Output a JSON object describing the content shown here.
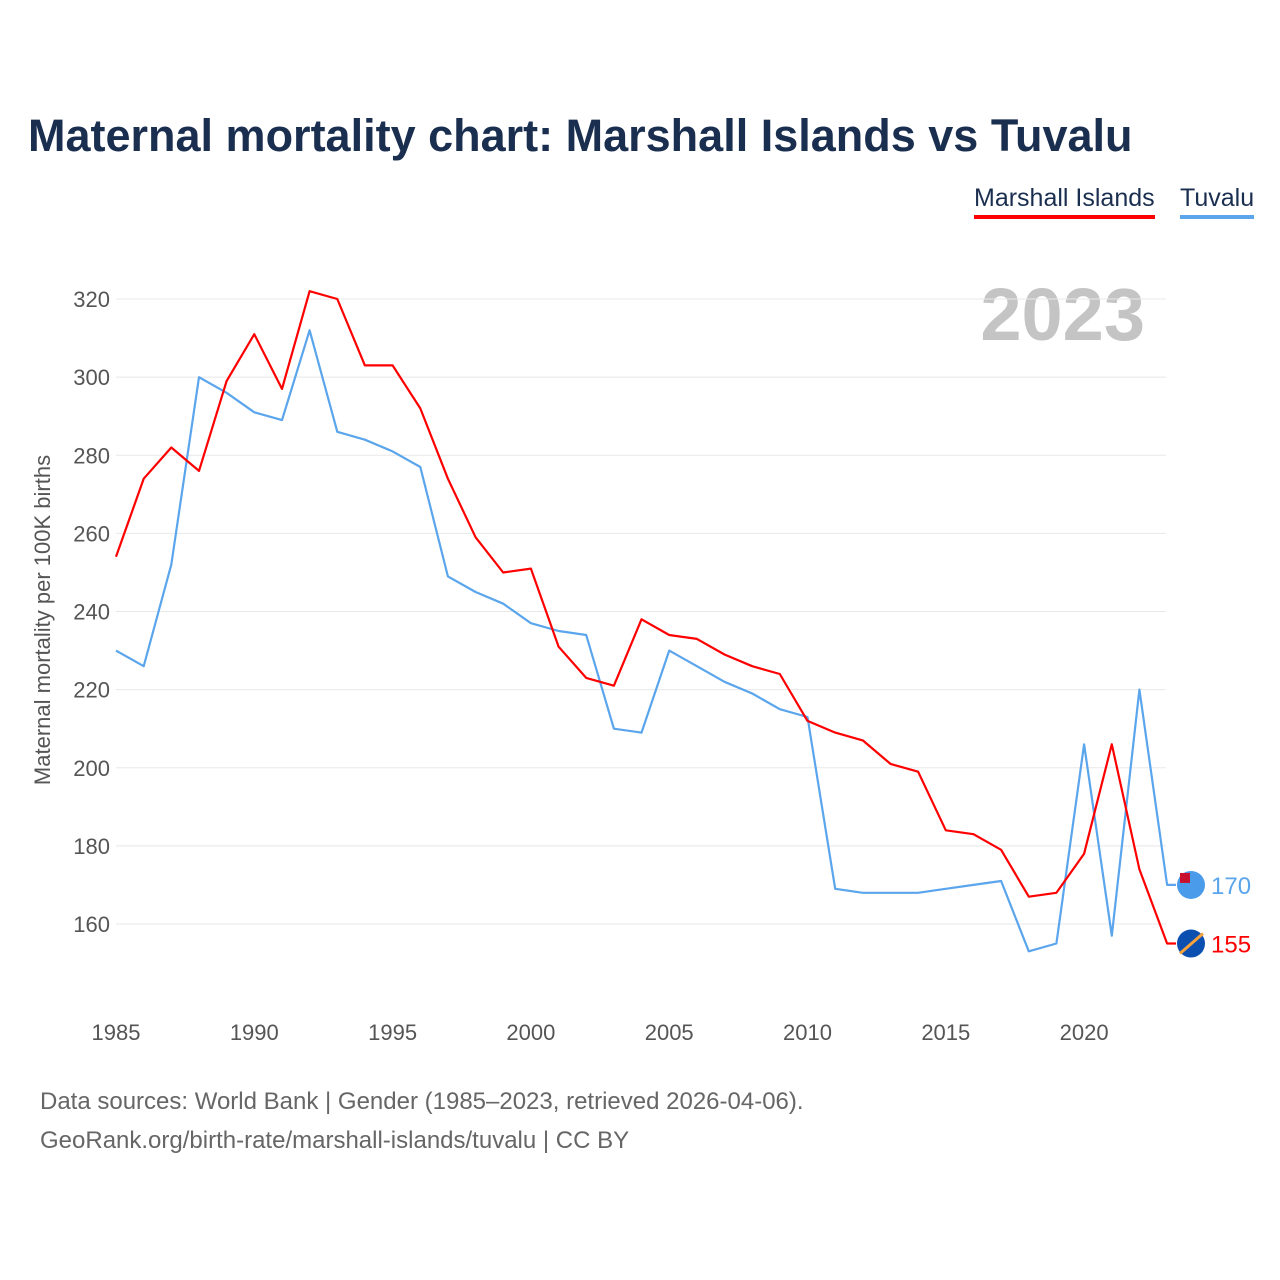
{
  "chart_data": {
    "type": "line",
    "title": "Maternal mortality chart: Marshall Islands vs Tuvalu",
    "xlabel": "",
    "ylabel": "Maternal mortality per 100K births",
    "year_label": "2023",
    "xlim": [
      1985,
      2023
    ],
    "ylim": [
      140,
      330
    ],
    "grid": true,
    "legend_position": "top-right",
    "x_ticks": [
      1985,
      1990,
      1995,
      2000,
      2005,
      2010,
      2015,
      2020
    ],
    "y_ticks": [
      160,
      180,
      200,
      220,
      240,
      260,
      280,
      300,
      320
    ],
    "x": [
      1985,
      1986,
      1987,
      1988,
      1989,
      1990,
      1991,
      1992,
      1993,
      1994,
      1995,
      1996,
      1997,
      1998,
      1999,
      2000,
      2001,
      2002,
      2003,
      2004,
      2005,
      2006,
      2007,
      2008,
      2009,
      2010,
      2011,
      2012,
      2013,
      2014,
      2015,
      2016,
      2017,
      2018,
      2019,
      2020,
      2021,
      2022,
      2023
    ],
    "series": [
      {
        "name": "Marshall Islands",
        "color": "#ff0000",
        "end_label": "155",
        "values": [
          254,
          274,
          282,
          276,
          299,
          311,
          297,
          322,
          320,
          303,
          303,
          292,
          274,
          259,
          250,
          251,
          231,
          223,
          221,
          238,
          234,
          233,
          229,
          226,
          224,
          212,
          209,
          207,
          201,
          199,
          184,
          183,
          179,
          167,
          168,
          178,
          206,
          174,
          155
        ]
      },
      {
        "name": "Tuvalu",
        "color": "#5aa5ec",
        "end_label": "170",
        "values": [
          230,
          226,
          252,
          300,
          296,
          291,
          289,
          312,
          286,
          284,
          281,
          277,
          249,
          245,
          242,
          237,
          235,
          234,
          210,
          209,
          230,
          226,
          222,
          219,
          215,
          213,
          169,
          168,
          168,
          168,
          169,
          170,
          171,
          153,
          155,
          206,
          157,
          220,
          170
        ]
      }
    ]
  },
  "footer": {
    "line1": "Data sources: World Bank | Gender (1985–2023, retrieved 2026-04-06).",
    "line2": "GeoRank.org/birth-rate/marshall-islands/tuvalu | CC BY"
  }
}
